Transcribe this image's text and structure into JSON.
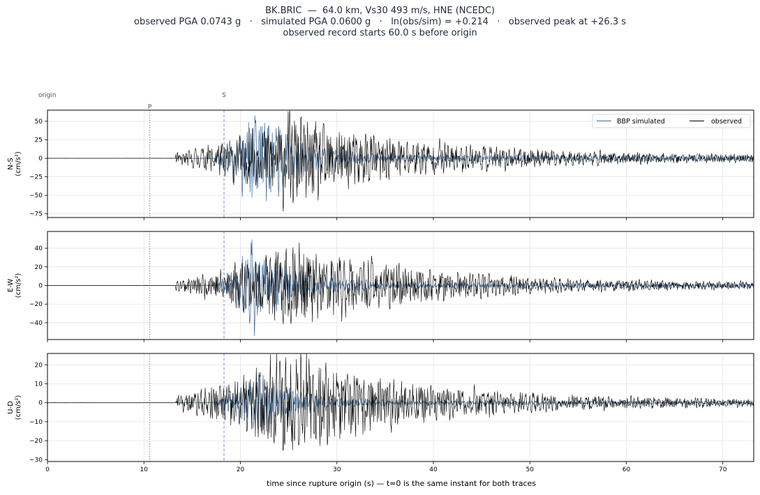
{
  "title": {
    "line1": "BK.BRIC  —  64.0 km, Vs30 493 m/s, HNE (NCEDC)",
    "line2": "observed PGA 0.0743 g   ·   simulated PGA 0.0600 g   ·   ln(obs/sim) = +0.214   ·   observed peak at +26.3 s",
    "line3": "observed record starts 60.0 s before origin"
  },
  "markers": {
    "origin": {
      "label": "origin",
      "t": 0
    },
    "p": {
      "label": "P",
      "t": 10.6
    },
    "s": {
      "label": "S",
      "t": 18.3
    }
  },
  "legend": {
    "simulated": "BBP simulated",
    "observed": "observed"
  },
  "colors": {
    "simulated": "#3e6898",
    "observed": "#000000",
    "p_line": "#888888",
    "s_line": "#7f93c2",
    "grid": "#e3e3e3"
  },
  "chart_data": {
    "type": "line",
    "xlabel": "time since rupture origin (s)   —   t=0 is the same instant for both traces",
    "xlim": [
      0,
      73.2
    ],
    "xticks": [
      0,
      10,
      20,
      30,
      40,
      50,
      60,
      70
    ],
    "grid": true,
    "legend_position": "top-right",
    "panels": [
      {
        "name": "N-S",
        "ylabel": "N-S",
        "yunit": "(cm/s²)",
        "ylim": [
          -80,
          65
        ],
        "yticks": [
          -75,
          -50,
          -25,
          0,
          25,
          50
        ],
        "sim_amp": 58,
        "sim_start": 17.5,
        "sim_peak": 22,
        "sim_decay": 4,
        "obs_amp": 72,
        "obs_start": 13.3,
        "obs_peak": 25.8,
        "obs_decay": 13,
        "seed": 11
      },
      {
        "name": "E-W",
        "ylabel": "E-W",
        "yunit": "(cm/s²)",
        "ylim": [
          -58,
          58
        ],
        "yticks": [
          -40,
          -20,
          0,
          20,
          40
        ],
        "sim_amp": 54,
        "sim_start": 17.5,
        "sim_peak": 21.5,
        "sim_decay": 4,
        "obs_amp": 46,
        "obs_start": 13.3,
        "obs_peak": 25.5,
        "obs_decay": 13,
        "seed": 23
      },
      {
        "name": "U-D",
        "ylabel": "U-D",
        "yunit": "(cm/s²)",
        "ylim": [
          -31,
          26
        ],
        "yticks": [
          -30,
          -20,
          -10,
          0,
          10,
          20
        ],
        "sim_amp": 16,
        "sim_start": 17.5,
        "sim_peak": 22,
        "sim_decay": 4,
        "obs_amp": 28,
        "obs_start": 13.3,
        "obs_peak": 26,
        "obs_decay": 12,
        "seed": 37
      }
    ]
  }
}
